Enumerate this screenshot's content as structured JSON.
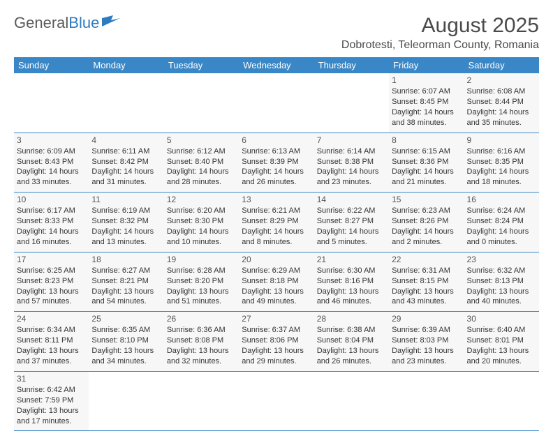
{
  "logo": {
    "part1": "General",
    "part2": "Blue"
  },
  "title": "August 2025",
  "location": "Dobrotesti, Teleorman County, Romania",
  "headers": [
    "Sunday",
    "Monday",
    "Tuesday",
    "Wednesday",
    "Thursday",
    "Friday",
    "Saturday"
  ],
  "colors": {
    "header_bg": "#3a87c7",
    "header_text": "#ffffff",
    "cell_bg": "#f7f7f7",
    "border": "#3a87c7",
    "title_color": "#4a4a4a",
    "logo_gray": "#5a5a5a",
    "logo_blue": "#2d7cc0"
  },
  "weeks": [
    [
      null,
      null,
      null,
      null,
      null,
      {
        "n": "1",
        "sr": "Sunrise: 6:07 AM",
        "ss": "Sunset: 8:45 PM",
        "d1": "Daylight: 14 hours",
        "d2": "and 38 minutes."
      },
      {
        "n": "2",
        "sr": "Sunrise: 6:08 AM",
        "ss": "Sunset: 8:44 PM",
        "d1": "Daylight: 14 hours",
        "d2": "and 35 minutes."
      }
    ],
    [
      {
        "n": "3",
        "sr": "Sunrise: 6:09 AM",
        "ss": "Sunset: 8:43 PM",
        "d1": "Daylight: 14 hours",
        "d2": "and 33 minutes."
      },
      {
        "n": "4",
        "sr": "Sunrise: 6:11 AM",
        "ss": "Sunset: 8:42 PM",
        "d1": "Daylight: 14 hours",
        "d2": "and 31 minutes."
      },
      {
        "n": "5",
        "sr": "Sunrise: 6:12 AM",
        "ss": "Sunset: 8:40 PM",
        "d1": "Daylight: 14 hours",
        "d2": "and 28 minutes."
      },
      {
        "n": "6",
        "sr": "Sunrise: 6:13 AM",
        "ss": "Sunset: 8:39 PM",
        "d1": "Daylight: 14 hours",
        "d2": "and 26 minutes."
      },
      {
        "n": "7",
        "sr": "Sunrise: 6:14 AM",
        "ss": "Sunset: 8:38 PM",
        "d1": "Daylight: 14 hours",
        "d2": "and 23 minutes."
      },
      {
        "n": "8",
        "sr": "Sunrise: 6:15 AM",
        "ss": "Sunset: 8:36 PM",
        "d1": "Daylight: 14 hours",
        "d2": "and 21 minutes."
      },
      {
        "n": "9",
        "sr": "Sunrise: 6:16 AM",
        "ss": "Sunset: 8:35 PM",
        "d1": "Daylight: 14 hours",
        "d2": "and 18 minutes."
      }
    ],
    [
      {
        "n": "10",
        "sr": "Sunrise: 6:17 AM",
        "ss": "Sunset: 8:33 PM",
        "d1": "Daylight: 14 hours",
        "d2": "and 16 minutes."
      },
      {
        "n": "11",
        "sr": "Sunrise: 6:19 AM",
        "ss": "Sunset: 8:32 PM",
        "d1": "Daylight: 14 hours",
        "d2": "and 13 minutes."
      },
      {
        "n": "12",
        "sr": "Sunrise: 6:20 AM",
        "ss": "Sunset: 8:30 PM",
        "d1": "Daylight: 14 hours",
        "d2": "and 10 minutes."
      },
      {
        "n": "13",
        "sr": "Sunrise: 6:21 AM",
        "ss": "Sunset: 8:29 PM",
        "d1": "Daylight: 14 hours",
        "d2": "and 8 minutes."
      },
      {
        "n": "14",
        "sr": "Sunrise: 6:22 AM",
        "ss": "Sunset: 8:27 PM",
        "d1": "Daylight: 14 hours",
        "d2": "and 5 minutes."
      },
      {
        "n": "15",
        "sr": "Sunrise: 6:23 AM",
        "ss": "Sunset: 8:26 PM",
        "d1": "Daylight: 14 hours",
        "d2": "and 2 minutes."
      },
      {
        "n": "16",
        "sr": "Sunrise: 6:24 AM",
        "ss": "Sunset: 8:24 PM",
        "d1": "Daylight: 14 hours",
        "d2": "and 0 minutes."
      }
    ],
    [
      {
        "n": "17",
        "sr": "Sunrise: 6:25 AM",
        "ss": "Sunset: 8:23 PM",
        "d1": "Daylight: 13 hours",
        "d2": "and 57 minutes."
      },
      {
        "n": "18",
        "sr": "Sunrise: 6:27 AM",
        "ss": "Sunset: 8:21 PM",
        "d1": "Daylight: 13 hours",
        "d2": "and 54 minutes."
      },
      {
        "n": "19",
        "sr": "Sunrise: 6:28 AM",
        "ss": "Sunset: 8:20 PM",
        "d1": "Daylight: 13 hours",
        "d2": "and 51 minutes."
      },
      {
        "n": "20",
        "sr": "Sunrise: 6:29 AM",
        "ss": "Sunset: 8:18 PM",
        "d1": "Daylight: 13 hours",
        "d2": "and 49 minutes."
      },
      {
        "n": "21",
        "sr": "Sunrise: 6:30 AM",
        "ss": "Sunset: 8:16 PM",
        "d1": "Daylight: 13 hours",
        "d2": "and 46 minutes."
      },
      {
        "n": "22",
        "sr": "Sunrise: 6:31 AM",
        "ss": "Sunset: 8:15 PM",
        "d1": "Daylight: 13 hours",
        "d2": "and 43 minutes."
      },
      {
        "n": "23",
        "sr": "Sunrise: 6:32 AM",
        "ss": "Sunset: 8:13 PM",
        "d1": "Daylight: 13 hours",
        "d2": "and 40 minutes."
      }
    ],
    [
      {
        "n": "24",
        "sr": "Sunrise: 6:34 AM",
        "ss": "Sunset: 8:11 PM",
        "d1": "Daylight: 13 hours",
        "d2": "and 37 minutes."
      },
      {
        "n": "25",
        "sr": "Sunrise: 6:35 AM",
        "ss": "Sunset: 8:10 PM",
        "d1": "Daylight: 13 hours",
        "d2": "and 34 minutes."
      },
      {
        "n": "26",
        "sr": "Sunrise: 6:36 AM",
        "ss": "Sunset: 8:08 PM",
        "d1": "Daylight: 13 hours",
        "d2": "and 32 minutes."
      },
      {
        "n": "27",
        "sr": "Sunrise: 6:37 AM",
        "ss": "Sunset: 8:06 PM",
        "d1": "Daylight: 13 hours",
        "d2": "and 29 minutes."
      },
      {
        "n": "28",
        "sr": "Sunrise: 6:38 AM",
        "ss": "Sunset: 8:04 PM",
        "d1": "Daylight: 13 hours",
        "d2": "and 26 minutes."
      },
      {
        "n": "29",
        "sr": "Sunrise: 6:39 AM",
        "ss": "Sunset: 8:03 PM",
        "d1": "Daylight: 13 hours",
        "d2": "and 23 minutes."
      },
      {
        "n": "30",
        "sr": "Sunrise: 6:40 AM",
        "ss": "Sunset: 8:01 PM",
        "d1": "Daylight: 13 hours",
        "d2": "and 20 minutes."
      }
    ],
    [
      {
        "n": "31",
        "sr": "Sunrise: 6:42 AM",
        "ss": "Sunset: 7:59 PM",
        "d1": "Daylight: 13 hours",
        "d2": "and 17 minutes."
      },
      null,
      null,
      null,
      null,
      null,
      null
    ]
  ]
}
